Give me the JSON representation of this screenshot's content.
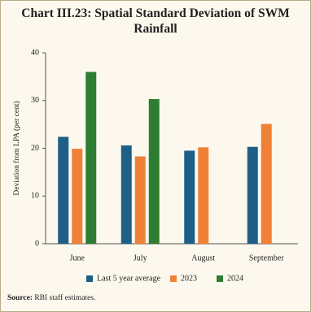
{
  "chart_data": {
    "type": "bar",
    "title": "Chart III.23: Spatial Standard Deviation of SWM Rainfall",
    "y_label": "Deviation from LPA (per cent)",
    "categories": [
      "June",
      "July",
      "August",
      "September"
    ],
    "series": [
      {
        "name": "Last 5 year average",
        "color": "#1f5f87",
        "values": [
          22.4,
          20.6,
          19.5,
          20.3
        ]
      },
      {
        "name": "2023",
        "color": "#f08038",
        "values": [
          19.9,
          18.3,
          20.2,
          25.1
        ]
      },
      {
        "name": "2024",
        "color": "#2e7d32",
        "values": [
          36.0,
          30.3,
          null,
          null
        ]
      }
    ],
    "ylim": [
      0,
      40
    ],
    "yticks": [
      0,
      10,
      20,
      30,
      40
    ],
    "grid": false,
    "legend": "bottom",
    "source_label": "Source:",
    "source_text": "RBI staff estimates."
  }
}
